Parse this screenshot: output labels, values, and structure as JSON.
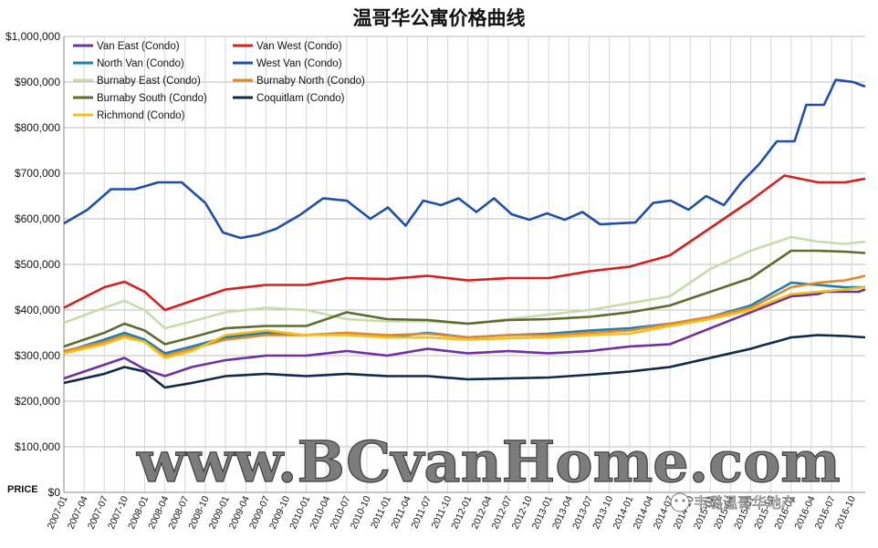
{
  "chart_data": {
    "type": "line",
    "title": "温哥华公寓价格曲线",
    "ylabel": "PRICE",
    "ylim": [
      0,
      1000000
    ],
    "yticks": [
      0,
      100000,
      200000,
      300000,
      400000,
      500000,
      600000,
      700000,
      800000,
      900000,
      1000000
    ],
    "ytick_labels": [
      "$0",
      "$100,000",
      "$200,000",
      "$300,000",
      "$400,000",
      "$500,000",
      "$600,000",
      "$700,000",
      "$800,000",
      "$900,000",
      "$1,000,000"
    ],
    "x_tick_labels": [
      "2007-01",
      "2007-04",
      "2007-07",
      "2007-10",
      "2008-01",
      "2008-04",
      "2008-07",
      "2008-10",
      "2009-01",
      "2009-04",
      "2009-07",
      "2009-10",
      "2010-01",
      "2010-04",
      "2010-07",
      "2010-10",
      "2011-01",
      "2011-04",
      "2011-07",
      "2011-10",
      "2012-01",
      "2012-04",
      "2012-07",
      "2012-10",
      "2013-01",
      "2013-04",
      "2013-07",
      "2013-10",
      "2014-01",
      "2014-04",
      "2014-07",
      "2014-10",
      "2015-01",
      "2015-04",
      "2015-07",
      "2015-10",
      "2016-01",
      "2016-04",
      "2016-07",
      "2016-10"
    ],
    "grid": true,
    "legend_position": "top-left",
    "series": [
      {
        "name": "Van East (Condo)",
        "color": "#7030a0",
        "anchors": [
          [
            0,
            250000
          ],
          [
            6,
            280000
          ],
          [
            9,
            295000
          ],
          [
            12,
            270000
          ],
          [
            15,
            255000
          ],
          [
            19,
            275000
          ],
          [
            24,
            290000
          ],
          [
            30,
            300000
          ],
          [
            36,
            300000
          ],
          [
            42,
            310000
          ],
          [
            48,
            300000
          ],
          [
            54,
            315000
          ],
          [
            60,
            305000
          ],
          [
            66,
            310000
          ],
          [
            72,
            305000
          ],
          [
            78,
            310000
          ],
          [
            84,
            320000
          ],
          [
            90,
            325000
          ],
          [
            96,
            360000
          ],
          [
            102,
            395000
          ],
          [
            108,
            430000
          ],
          [
            112,
            435000
          ],
          [
            113,
            440000
          ],
          [
            114,
            440000
          ],
          [
            116,
            440000
          ],
          [
            117,
            440000
          ],
          [
            118,
            440000
          ],
          [
            119,
            445000
          ]
        ]
      },
      {
        "name": "Van West (Condo)",
        "color": "#d42020",
        "anchors": [
          [
            0,
            405000
          ],
          [
            6,
            450000
          ],
          [
            9,
            462000
          ],
          [
            12,
            440000
          ],
          [
            15,
            400000
          ],
          [
            19,
            420000
          ],
          [
            24,
            445000
          ],
          [
            30,
            455000
          ],
          [
            36,
            455000
          ],
          [
            42,
            470000
          ],
          [
            48,
            468000
          ],
          [
            54,
            475000
          ],
          [
            60,
            465000
          ],
          [
            66,
            470000
          ],
          [
            72,
            470000
          ],
          [
            78,
            485000
          ],
          [
            84,
            495000
          ],
          [
            90,
            520000
          ],
          [
            96,
            580000
          ],
          [
            102,
            640000
          ],
          [
            107,
            695000
          ],
          [
            112,
            680000
          ],
          [
            116,
            680000
          ],
          [
            119,
            688000
          ]
        ]
      },
      {
        "name": "North Van (Condo)",
        "color": "#1f7fa8",
        "anchors": [
          [
            0,
            308000
          ],
          [
            6,
            335000
          ],
          [
            9,
            350000
          ],
          [
            12,
            335000
          ],
          [
            15,
            305000
          ],
          [
            19,
            320000
          ],
          [
            24,
            340000
          ],
          [
            30,
            350000
          ],
          [
            36,
            345000
          ],
          [
            42,
            350000
          ],
          [
            48,
            340000
          ],
          [
            54,
            350000
          ],
          [
            60,
            340000
          ],
          [
            66,
            345000
          ],
          [
            72,
            348000
          ],
          [
            78,
            355000
          ],
          [
            84,
            360000
          ],
          [
            90,
            370000
          ],
          [
            96,
            385000
          ],
          [
            102,
            410000
          ],
          [
            108,
            460000
          ],
          [
            112,
            455000
          ],
          [
            116,
            450000
          ],
          [
            119,
            450000
          ]
        ]
      },
      {
        "name": "West Van (Condo)",
        "color": "#1f4ea8",
        "anchors": [
          [
            0,
            590000
          ],
          [
            4,
            620000
          ],
          [
            8,
            665000
          ],
          [
            12,
            665000
          ],
          [
            16,
            680000
          ],
          [
            20,
            680000
          ],
          [
            24,
            635000
          ],
          [
            27,
            570000
          ],
          [
            30,
            558000
          ],
          [
            33,
            565000
          ],
          [
            36,
            578000
          ],
          [
            40,
            608000
          ],
          [
            44,
            645000
          ],
          [
            48,
            640000
          ],
          [
            52,
            600000
          ],
          [
            55,
            625000
          ],
          [
            58,
            585000
          ],
          [
            61,
            640000
          ],
          [
            64,
            630000
          ],
          [
            67,
            645000
          ],
          [
            70,
            615000
          ],
          [
            73,
            645000
          ],
          [
            76,
            610000
          ],
          [
            79,
            598000
          ],
          [
            82,
            612000
          ],
          [
            85,
            598000
          ],
          [
            88,
            615000
          ],
          [
            91,
            588000
          ],
          [
            94,
            590000
          ],
          [
            97,
            592000
          ],
          [
            100,
            635000
          ],
          [
            103,
            640000
          ],
          [
            106,
            620000
          ],
          [
            109,
            650000
          ],
          [
            112,
            630000
          ],
          [
            115,
            680000
          ],
          [
            118,
            720000
          ],
          [
            121,
            770000
          ],
          [
            124,
            770000
          ],
          [
            126,
            850000
          ],
          [
            129,
            850000
          ],
          [
            131,
            905000
          ],
          [
            134,
            900000
          ],
          [
            136,
            890000
          ]
        ]
      },
      {
        "name": "Burnaby East (Condo)",
        "color": "#c8dcaa",
        "anchors": [
          [
            0,
            372000
          ],
          [
            6,
            405000
          ],
          [
            9,
            420000
          ],
          [
            12,
            400000
          ],
          [
            15,
            360000
          ],
          [
            19,
            375000
          ],
          [
            24,
            395000
          ],
          [
            30,
            405000
          ],
          [
            36,
            400000
          ],
          [
            42,
            380000
          ],
          [
            48,
            375000
          ],
          [
            54,
            375000
          ],
          [
            60,
            370000
          ],
          [
            66,
            380000
          ],
          [
            72,
            390000
          ],
          [
            78,
            400000
          ],
          [
            84,
            415000
          ],
          [
            90,
            430000
          ],
          [
            96,
            490000
          ],
          [
            102,
            530000
          ],
          [
            108,
            560000
          ],
          [
            112,
            550000
          ],
          [
            116,
            545000
          ],
          [
            119,
            550000
          ]
        ]
      },
      {
        "name": "Burnaby North (Condo)",
        "color": "#e08a30",
        "anchors": [
          [
            0,
            310000
          ],
          [
            6,
            330000
          ],
          [
            9,
            345000
          ],
          [
            12,
            330000
          ],
          [
            15,
            300000
          ],
          [
            19,
            315000
          ],
          [
            24,
            335000
          ],
          [
            30,
            345000
          ],
          [
            36,
            345000
          ],
          [
            42,
            350000
          ],
          [
            48,
            345000
          ],
          [
            54,
            348000
          ],
          [
            60,
            340000
          ],
          [
            66,
            345000
          ],
          [
            72,
            345000
          ],
          [
            78,
            350000
          ],
          [
            84,
            355000
          ],
          [
            90,
            370000
          ],
          [
            96,
            385000
          ],
          [
            102,
            405000
          ],
          [
            108,
            450000
          ],
          [
            112,
            460000
          ],
          [
            116,
            465000
          ],
          [
            119,
            475000
          ]
        ]
      },
      {
        "name": "Burnaby South (Condo)",
        "color": "#5f6b30",
        "anchors": [
          [
            0,
            320000
          ],
          [
            6,
            350000
          ],
          [
            9,
            370000
          ],
          [
            12,
            355000
          ],
          [
            15,
            325000
          ],
          [
            19,
            340000
          ],
          [
            24,
            360000
          ],
          [
            30,
            365000
          ],
          [
            36,
            365000
          ],
          [
            42,
            395000
          ],
          [
            48,
            380000
          ],
          [
            54,
            378000
          ],
          [
            60,
            370000
          ],
          [
            66,
            378000
          ],
          [
            72,
            380000
          ],
          [
            78,
            385000
          ],
          [
            84,
            395000
          ],
          [
            90,
            410000
          ],
          [
            96,
            440000
          ],
          [
            102,
            470000
          ],
          [
            108,
            530000
          ],
          [
            112,
            530000
          ],
          [
            116,
            528000
          ],
          [
            119,
            525000
          ]
        ]
      },
      {
        "name": "Coquitlam (Condo)",
        "color": "#0f2a4a",
        "anchors": [
          [
            0,
            240000
          ],
          [
            6,
            260000
          ],
          [
            9,
            275000
          ],
          [
            12,
            265000
          ],
          [
            15,
            230000
          ],
          [
            19,
            240000
          ],
          [
            24,
            255000
          ],
          [
            30,
            260000
          ],
          [
            36,
            255000
          ],
          [
            42,
            260000
          ],
          [
            48,
            255000
          ],
          [
            54,
            255000
          ],
          [
            60,
            248000
          ],
          [
            66,
            250000
          ],
          [
            72,
            252000
          ],
          [
            78,
            258000
          ],
          [
            84,
            265000
          ],
          [
            90,
            275000
          ],
          [
            96,
            295000
          ],
          [
            102,
            315000
          ],
          [
            108,
            340000
          ],
          [
            112,
            345000
          ],
          [
            116,
            343000
          ],
          [
            119,
            340000
          ]
        ]
      },
      {
        "name": "Richmond (Condo)",
        "color": "#f0c020",
        "anchors": [
          [
            0,
            305000
          ],
          [
            6,
            325000
          ],
          [
            9,
            340000
          ],
          [
            12,
            330000
          ],
          [
            15,
            295000
          ],
          [
            19,
            310000
          ],
          [
            24,
            345000
          ],
          [
            30,
            355000
          ],
          [
            36,
            345000
          ],
          [
            42,
            345000
          ],
          [
            48,
            340000
          ],
          [
            54,
            340000
          ],
          [
            60,
            335000
          ],
          [
            66,
            338000
          ],
          [
            72,
            340000
          ],
          [
            78,
            345000
          ],
          [
            84,
            348000
          ],
          [
            90,
            365000
          ],
          [
            96,
            380000
          ],
          [
            102,
            400000
          ],
          [
            108,
            435000
          ],
          [
            112,
            440000
          ],
          [
            116,
            445000
          ],
          [
            119,
            450000
          ]
        ]
      }
    ]
  },
  "watermark": "www.BCvanHome.com",
  "badge": "韦璐温哥华地产"
}
